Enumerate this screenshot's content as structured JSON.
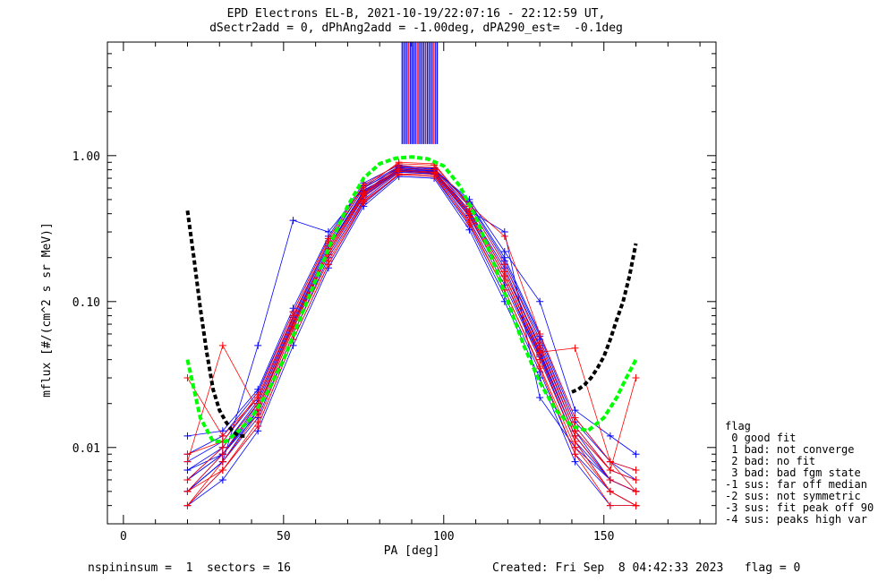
{
  "title_line1": "EPD Electrons EL-B, 2021-10-19/22:07:16 - 22:12:59 UT,",
  "title_line2": "dSectr2add = 0, dPhAng2add = -1.00deg, dPA290_est=  -0.1deg",
  "footer_left": "nspininsum =  1  sectors = 16",
  "footer_right": "Created: Fri Sep  8 04:42:33 2023   flag = 0",
  "legend": {
    "title": "flag",
    "entries": [
      " 0 good fit",
      " 1 bad: not converge",
      " 2 bad: no fit",
      " 3 bad: bad fgm state",
      "-1 sus: far off median",
      "-2 sus: not symmetric",
      "-3 sus: fit peak off 90",
      "-4 sus: peaks high var"
    ]
  },
  "colors": {
    "red": "#ff0000",
    "blue": "#0000ff",
    "green": "#00ff00",
    "black": "#000000"
  },
  "chart_data": {
    "type": "line",
    "xlabel": "PA [deg]",
    "ylabel": "mflux [#/(cm^2 s sr MeV)]",
    "xlim": [
      -5,
      185
    ],
    "ylim": [
      0.003,
      6
    ],
    "yscale": "log",
    "x_ticks": [
      0,
      50,
      100,
      150
    ],
    "x_tick_labels": [
      "0",
      "50",
      "100",
      "150"
    ],
    "y_ticks": [
      0.01,
      0.1,
      1.0
    ],
    "y_tick_labels": [
      "0.01",
      "0.10",
      "1.00"
    ],
    "pa_bins": [
      20,
      31,
      42,
      53,
      64,
      75,
      86,
      97,
      108,
      119,
      130,
      141,
      152,
      160
    ],
    "series": [
      {
        "color": "blue",
        "values": [
          0.006,
          0.009,
          0.018,
          0.07,
          0.22,
          0.55,
          0.8,
          0.78,
          0.4,
          0.15,
          0.045,
          0.012,
          0.006,
          0.005
        ]
      },
      {
        "color": "blue",
        "values": [
          0.005,
          0.008,
          0.016,
          0.06,
          0.2,
          0.5,
          0.77,
          0.75,
          0.36,
          0.13,
          0.04,
          0.011,
          0.005,
          0.004
        ]
      },
      {
        "color": "blue",
        "values": [
          0.008,
          0.011,
          0.022,
          0.08,
          0.25,
          0.6,
          0.83,
          0.8,
          0.45,
          0.18,
          0.055,
          0.014,
          0.007,
          0.006
        ]
      },
      {
        "color": "blue",
        "values": [
          0.004,
          0.007,
          0.014,
          0.055,
          0.18,
          0.47,
          0.74,
          0.72,
          0.33,
          0.11,
          0.033,
          0.009,
          0.005,
          0.004
        ]
      },
      {
        "color": "blue",
        "values": [
          0.012,
          0.013,
          0.025,
          0.09,
          0.28,
          0.65,
          0.86,
          0.82,
          0.48,
          0.2,
          0.06,
          0.016,
          0.008,
          0.007
        ]
      },
      {
        "color": "blue",
        "values": [
          0.006,
          0.01,
          0.02,
          0.075,
          0.23,
          0.58,
          0.79,
          0.77,
          0.41,
          0.16,
          0.05,
          0.013,
          0.006,
          0.005
        ]
      },
      {
        "color": "blue",
        "values": [
          0.005,
          0.009,
          0.019,
          0.068,
          0.21,
          0.53,
          0.78,
          0.76,
          0.39,
          0.14,
          0.043,
          0.012,
          0.006,
          0.005
        ]
      },
      {
        "color": "blue",
        "values": [
          0.007,
          0.01,
          0.021,
          0.078,
          0.24,
          0.57,
          0.81,
          0.79,
          0.42,
          0.17,
          0.048,
          0.013,
          0.007,
          0.006
        ]
      },
      {
        "color": "blue",
        "values": [
          0.004,
          0.006,
          0.013,
          0.05,
          0.17,
          0.45,
          0.72,
          0.7,
          0.31,
          0.1,
          0.03,
          0.008,
          0.004,
          0.004
        ]
      },
      {
        "color": "blue",
        "values": [
          0.009,
          0.012,
          0.024,
          0.085,
          0.27,
          0.62,
          0.84,
          0.81,
          0.47,
          0.19,
          0.058,
          0.015,
          0.008,
          0.006
        ]
      },
      {
        "color": "blue",
        "values": [
          0.006,
          0.009,
          0.017,
          0.065,
          0.21,
          0.52,
          0.78,
          0.76,
          0.38,
          0.14,
          0.042,
          0.011,
          0.006,
          0.005
        ]
      },
      {
        "color": "blue",
        "values": [
          0.005,
          0.008,
          0.018,
          0.07,
          0.22,
          0.54,
          0.79,
          0.77,
          0.4,
          0.15,
          0.046,
          0.012,
          0.006,
          0.005
        ]
      },
      {
        "color": "blue",
        "values": [
          0.005,
          0.008,
          0.05,
          0.36,
          0.3,
          0.6,
          0.82,
          0.8,
          0.5,
          0.22,
          0.1,
          0.018,
          0.012,
          0.009
        ]
      },
      {
        "color": "blue",
        "values": [
          0.007,
          0.009,
          0.02,
          0.072,
          0.23,
          0.56,
          0.8,
          0.78,
          0.42,
          0.3,
          0.022,
          0.01,
          0.006,
          0.005
        ]
      },
      {
        "color": "red",
        "values": [
          0.004,
          0.008,
          0.017,
          0.065,
          0.21,
          0.52,
          0.78,
          0.76,
          0.38,
          0.14,
          0.04,
          0.011,
          0.005,
          0.004
        ]
      },
      {
        "color": "red",
        "values": [
          0.008,
          0.05,
          0.018,
          0.068,
          0.22,
          0.54,
          0.8,
          0.77,
          0.4,
          0.15,
          0.045,
          0.048,
          0.008,
          0.005
        ]
      },
      {
        "color": "red",
        "values": [
          0.006,
          0.01,
          0.02,
          0.075,
          0.23,
          0.56,
          0.85,
          0.83,
          0.42,
          0.16,
          0.048,
          0.013,
          0.007,
          0.006
        ]
      },
      {
        "color": "red",
        "values": [
          0.005,
          0.007,
          0.014,
          0.055,
          0.18,
          0.48,
          0.75,
          0.74,
          0.34,
          0.12,
          0.036,
          0.01,
          0.005,
          0.004
        ]
      },
      {
        "color": "red",
        "values": [
          0.03,
          0.012,
          0.022,
          0.08,
          0.26,
          0.6,
          0.9,
          0.88,
          0.45,
          0.18,
          0.052,
          0.014,
          0.007,
          0.03
        ]
      },
      {
        "color": "red",
        "values": [
          0.004,
          0.007,
          0.015,
          0.06,
          0.19,
          0.49,
          0.74,
          0.72,
          0.35,
          0.12,
          0.035,
          0.009,
          0.004,
          0.004
        ]
      },
      {
        "color": "red",
        "values": [
          0.009,
          0.011,
          0.023,
          0.085,
          0.27,
          0.63,
          0.88,
          0.86,
          0.46,
          0.28,
          0.06,
          0.016,
          0.008,
          0.007
        ]
      },
      {
        "color": "red",
        "values": [
          0.005,
          0.009,
          0.019,
          0.07,
          0.22,
          0.55,
          0.82,
          0.8,
          0.4,
          0.15,
          0.044,
          0.012,
          0.006,
          0.005
        ]
      }
    ],
    "fit_green": {
      "color": "green",
      "x": [
        20,
        24,
        28,
        32,
        36,
        40,
        45,
        50,
        55,
        60,
        65,
        70,
        75,
        80,
        85,
        90,
        95,
        100,
        105,
        110,
        115,
        120,
        125,
        130,
        135,
        140,
        145,
        150,
        154,
        157,
        160
      ],
      "values": [
        0.04,
        0.016,
        0.011,
        0.011,
        0.013,
        0.016,
        0.024,
        0.04,
        0.075,
        0.14,
        0.26,
        0.45,
        0.7,
        0.88,
        0.96,
        0.98,
        0.95,
        0.85,
        0.62,
        0.38,
        0.2,
        0.1,
        0.05,
        0.028,
        0.018,
        0.014,
        0.013,
        0.016,
        0.022,
        0.03,
        0.04
      ]
    },
    "fit_black": {
      "color": "black",
      "x": [
        20,
        22,
        24,
        26,
        28,
        30,
        32,
        34,
        36,
        38,
        140,
        142,
        144,
        146,
        148,
        150,
        152,
        154,
        156,
        158,
        160
      ],
      "values": [
        0.42,
        0.2,
        0.09,
        0.045,
        0.025,
        0.018,
        0.015,
        0.013,
        0.012,
        0.012,
        0.024,
        0.025,
        0.027,
        0.03,
        0.035,
        0.042,
        0.055,
        0.075,
        0.1,
        0.15,
        0.25
      ]
    },
    "peak_spikes": {
      "x_range": [
        87,
        98
      ],
      "y_range": [
        1.2,
        6
      ],
      "count": 22
    }
  }
}
